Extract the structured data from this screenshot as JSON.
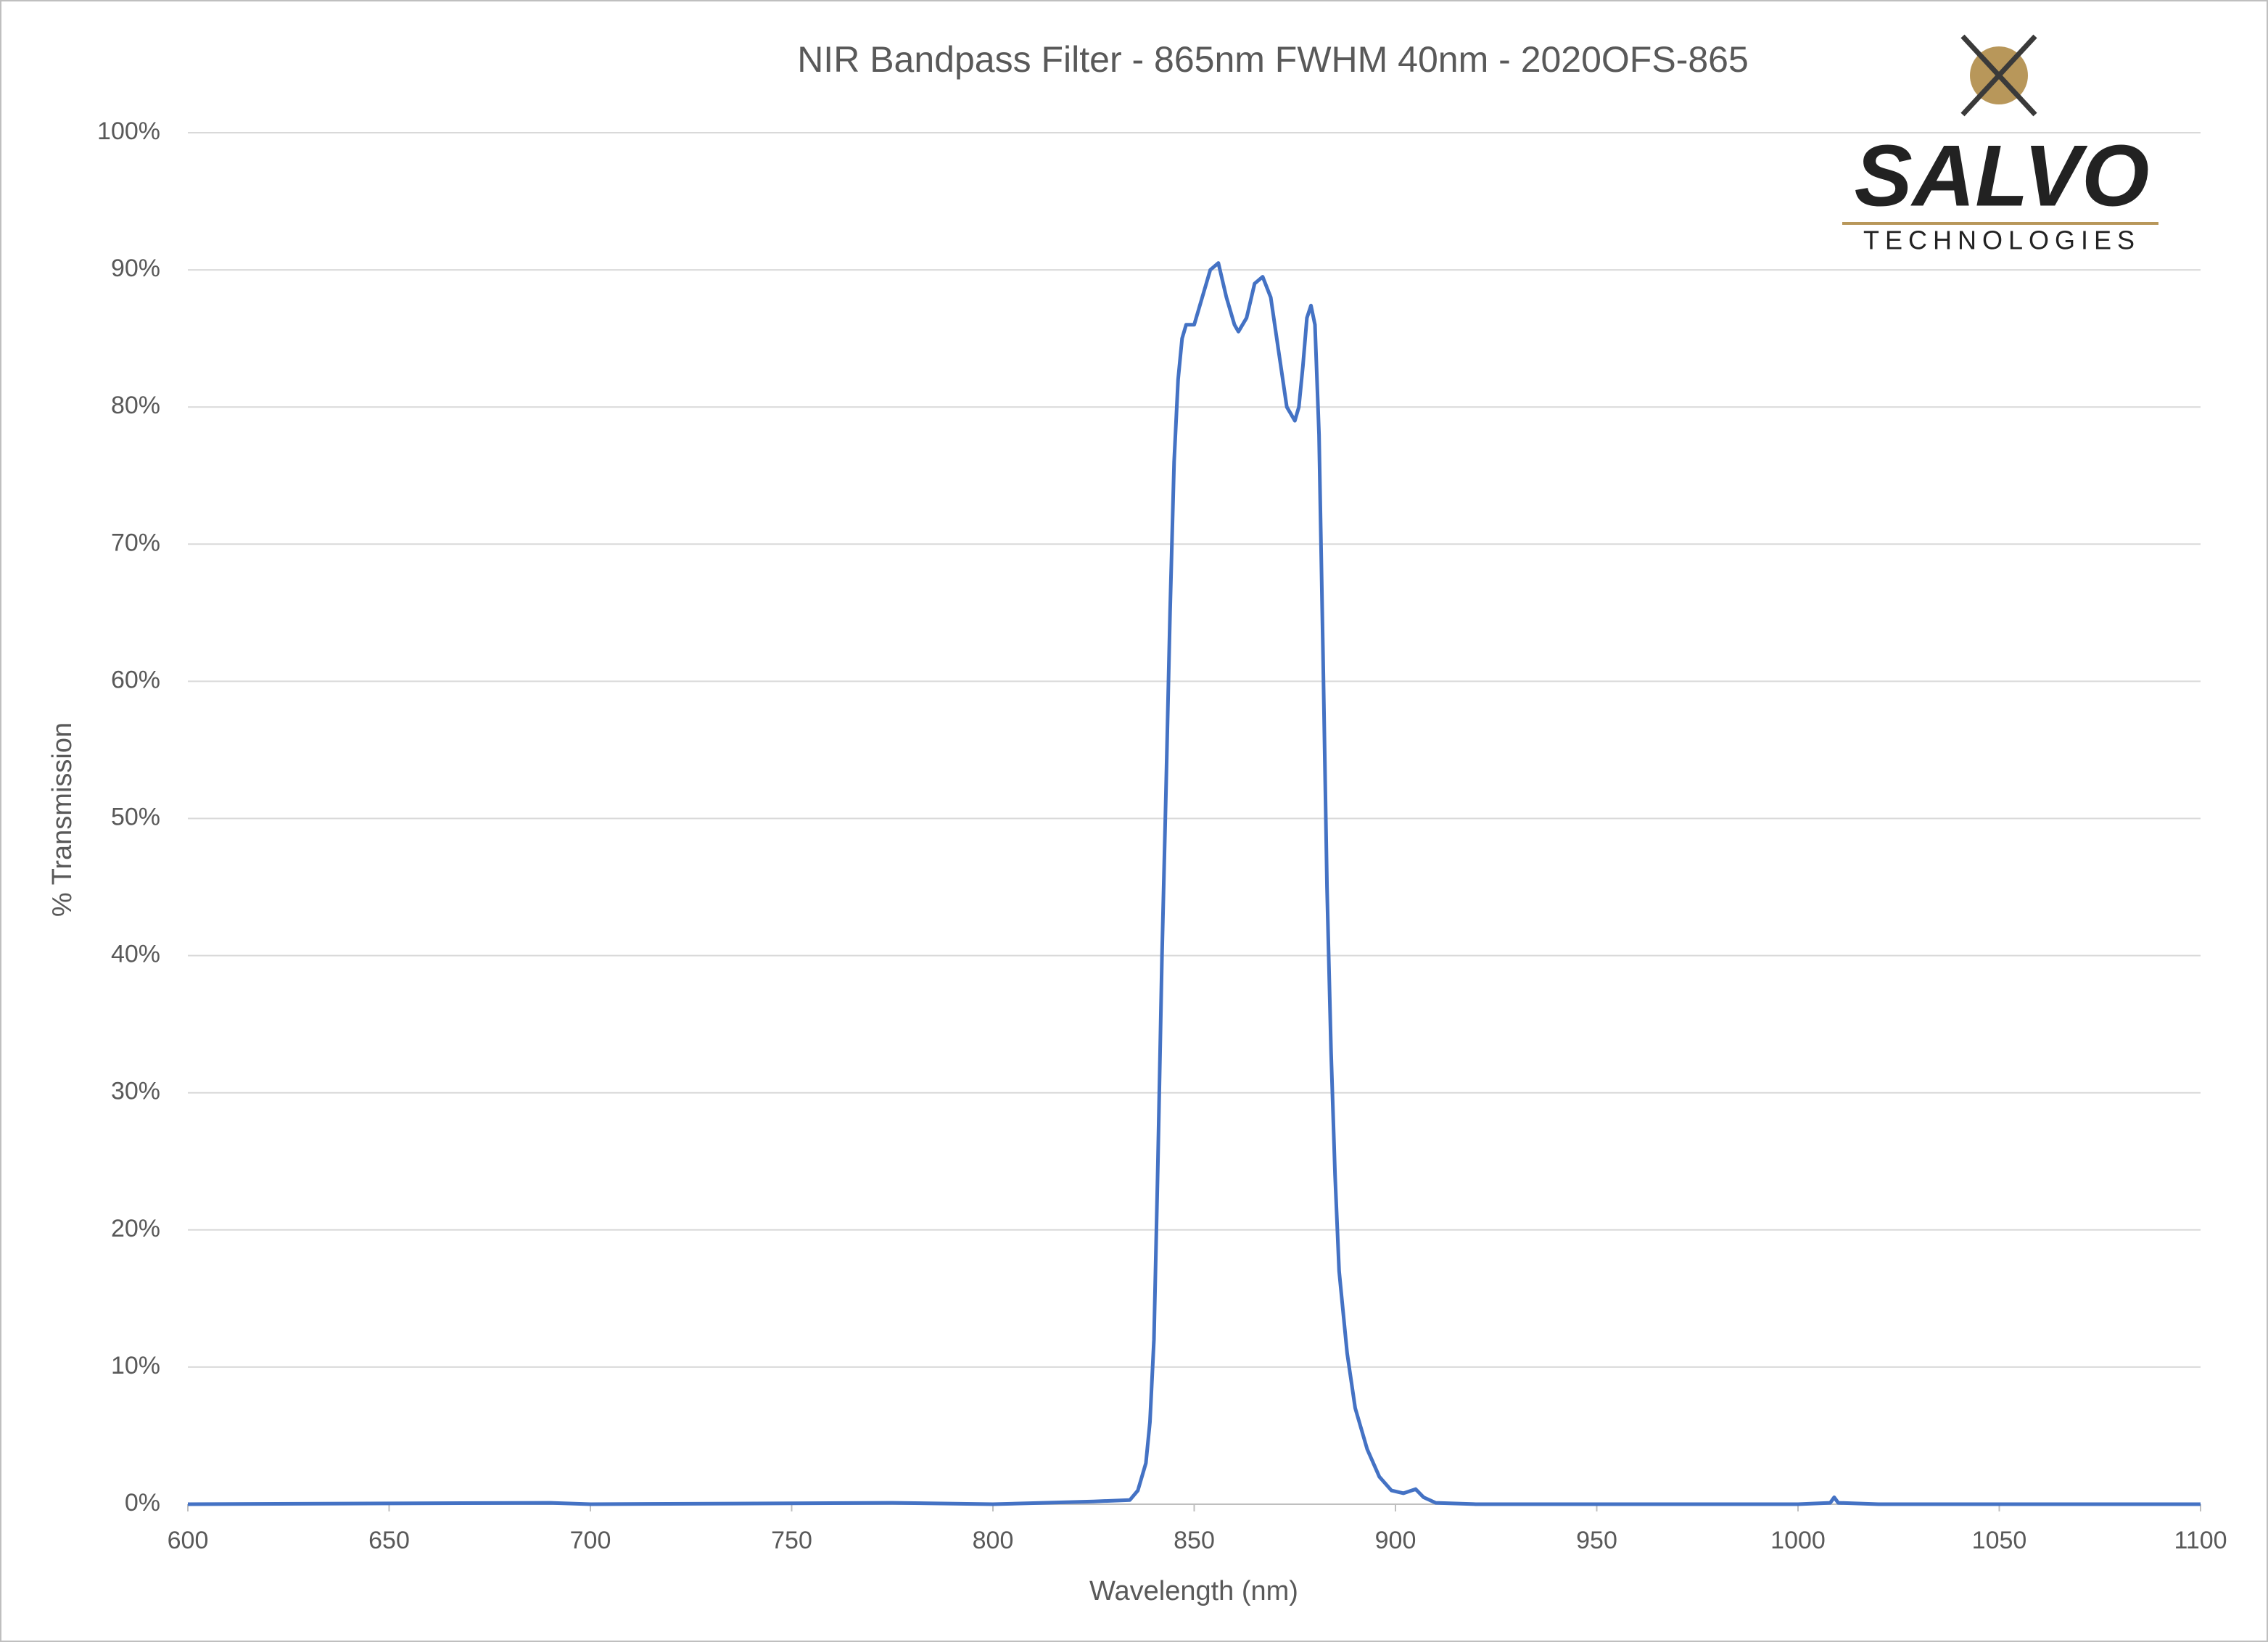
{
  "chart_data": {
    "type": "line",
    "title": "NIR Bandpass Filter - 865nm FWHM 40nm - 2020OFS-865",
    "x_label": "Wavelength (nm)",
    "y_label": "% Transmission",
    "x": [
      600,
      640,
      690,
      700,
      775,
      800,
      825,
      834,
      836,
      838,
      839,
      840,
      841,
      842,
      843,
      844,
      845,
      846,
      847,
      848,
      850,
      852,
      854,
      856,
      858,
      860,
      861,
      863,
      865,
      867,
      869,
      871,
      873,
      875,
      876,
      877,
      878,
      879,
      880,
      881,
      882,
      883,
      884,
      885,
      886,
      888,
      890,
      893,
      896,
      899,
      902,
      905,
      907,
      910,
      920,
      1000,
      1008,
      1009,
      1010,
      1020,
      1100
    ],
    "series": [
      {
        "name": "Transmission",
        "color": "#4472c4",
        "values": [
          0,
          0.05,
          0.1,
          0,
          0.1,
          0,
          0.2,
          0.3,
          1,
          3,
          6,
          12,
          25,
          40,
          52,
          65,
          76,
          82,
          85,
          86,
          86,
          88,
          90,
          90.5,
          88,
          86,
          85.5,
          86.5,
          89,
          89.5,
          88,
          84,
          80,
          79,
          80,
          83,
          86.5,
          87.4,
          86,
          78,
          62,
          45,
          33,
          24,
          17,
          11,
          7,
          4,
          2,
          1,
          0.8,
          1.1,
          0.5,
          0.1,
          0,
          0,
          0.1,
          0.5,
          0.1,
          0,
          0
        ]
      }
    ],
    "xlim": [
      600,
      1100
    ],
    "xticks": [
      600,
      650,
      700,
      750,
      800,
      850,
      900,
      950,
      1000,
      1050,
      1100
    ],
    "ylim": [
      0,
      100
    ],
    "yticks": [
      {
        "value": 0,
        "label": "0%"
      },
      {
        "value": 10,
        "label": "10%"
      },
      {
        "value": 20,
        "label": "20%"
      },
      {
        "value": 30,
        "label": "30%"
      },
      {
        "value": 40,
        "label": "40%"
      },
      {
        "value": 50,
        "label": "50%"
      },
      {
        "value": 60,
        "label": "60%"
      },
      {
        "value": 70,
        "label": "70%"
      },
      {
        "value": 80,
        "label": "80%"
      },
      {
        "value": 90,
        "label": "90%"
      },
      {
        "value": 100,
        "label": "100%"
      }
    ],
    "grid": true
  },
  "logo": {
    "name": "SALVO",
    "tagline": "TECHNOLOGIES"
  }
}
